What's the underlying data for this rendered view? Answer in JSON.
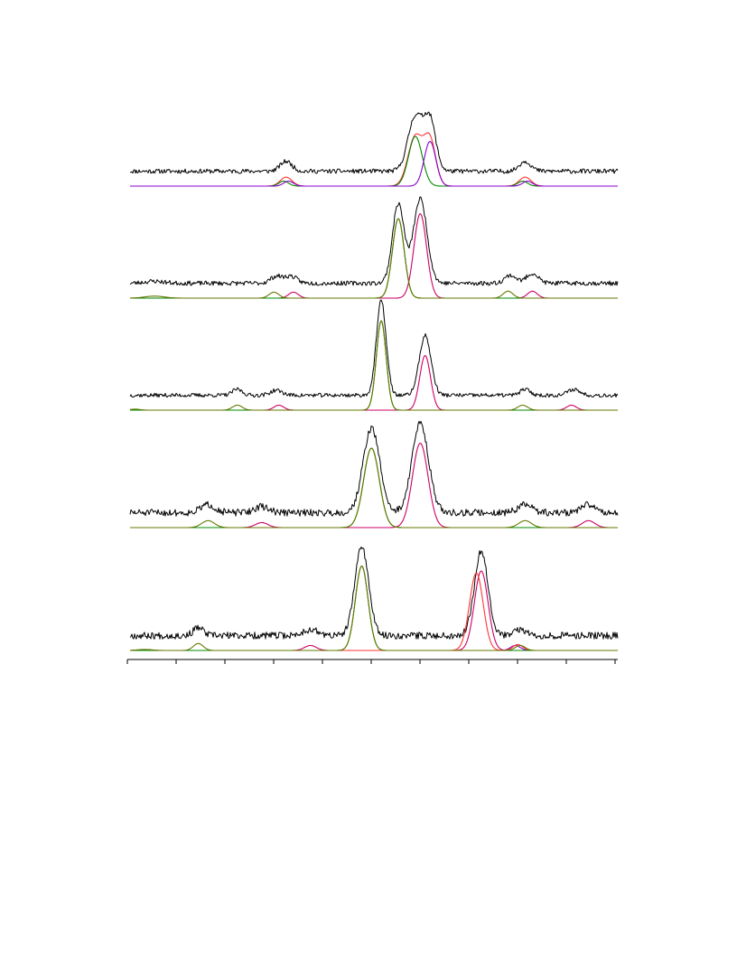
{
  "chart_data": {
    "type": "line",
    "title": "",
    "xlabel": "",
    "ylabel": "",
    "xlim": [
      0,
      10
    ],
    "x_ticks": [
      0,
      1,
      2,
      3,
      4,
      5,
      6,
      7,
      8,
      9,
      10
    ],
    "grid": false,
    "colors": {
      "experimental": "#000000",
      "total_fit": "#ff3333",
      "component_a": "#008800",
      "component_b": "#8800cc",
      "component_c": "#cc0066",
      "component_d": "#667700"
    },
    "panels": [
      {
        "noise": 0.045,
        "seed": 11,
        "series": [
          {
            "role": "experimental",
            "offset": 0.15,
            "peaks": [
              [
                3.2,
                0.1,
                0.12
              ],
              [
                5.85,
                0.55,
                0.15
              ],
              [
                6.15,
                0.5,
                0.12
              ],
              [
                8.1,
                0.1,
                0.12
              ]
            ]
          },
          {
            "role": "total_fit",
            "offset": 0.0,
            "peaks": [
              [
                3.2,
                0.09,
                0.12
              ],
              [
                5.85,
                0.5,
                0.15
              ],
              [
                6.15,
                0.45,
                0.12
              ],
              [
                8.1,
                0.09,
                0.12
              ]
            ]
          },
          {
            "role": "component_a",
            "offset": 0.0,
            "peaks": [
              [
                3.15,
                0.05,
                0.1
              ],
              [
                5.85,
                0.5,
                0.14
              ],
              [
                8.05,
                0.05,
                0.1
              ]
            ]
          },
          {
            "role": "component_b",
            "offset": 0.0,
            "peaks": [
              [
                3.25,
                0.05,
                0.1
              ],
              [
                6.15,
                0.45,
                0.12
              ],
              [
                8.15,
                0.05,
                0.1
              ]
            ]
          }
        ]
      },
      {
        "noise": 0.045,
        "seed": 23,
        "series": [
          {
            "role": "experimental",
            "offset": 0.15,
            "peaks": [
              [
                0.5,
                0.02,
                0.2
              ],
              [
                3.0,
                0.07,
                0.12
              ],
              [
                3.3,
                0.07,
                0.12
              ],
              [
                5.5,
                0.8,
                0.12
              ],
              [
                5.95,
                0.85,
                0.14
              ],
              [
                7.8,
                0.08,
                0.12
              ],
              [
                8.25,
                0.1,
                0.12
              ]
            ]
          },
          {
            "role": "component_c",
            "offset": 0.0,
            "peaks": [
              [
                3.35,
                0.06,
                0.1
              ],
              [
                5.95,
                0.85,
                0.13
              ],
              [
                8.25,
                0.07,
                0.1
              ]
            ]
          },
          {
            "role": "component_a",
            "offset": 0.0,
            "peaks": [
              [
                5.5,
                0.8,
                0.12
              ]
            ]
          },
          {
            "role": "component_d",
            "offset": 0.0,
            "peaks": [
              [
                0.5,
                0.02,
                0.2
              ],
              [
                2.95,
                0.06,
                0.1
              ],
              [
                5.5,
                0.8,
                0.12
              ],
              [
                7.75,
                0.07,
                0.1
              ]
            ]
          }
        ]
      },
      {
        "noise": 0.04,
        "seed": 37,
        "series": [
          {
            "role": "experimental",
            "offset": 0.15,
            "peaks": [
              [
                2.2,
                0.06,
                0.1
              ],
              [
                3.0,
                0.05,
                0.12
              ],
              [
                5.15,
                0.95,
                0.1
              ],
              [
                6.05,
                0.6,
                0.12
              ],
              [
                8.1,
                0.06,
                0.1
              ],
              [
                9.1,
                0.06,
                0.12
              ]
            ]
          },
          {
            "role": "component_c",
            "offset": 0.0,
            "peaks": [
              [
                3.05,
                0.05,
                0.1
              ],
              [
                6.05,
                0.55,
                0.11
              ],
              [
                9.05,
                0.05,
                0.1
              ]
            ]
          },
          {
            "role": "component_a",
            "offset": 0.0,
            "peaks": [
              [
                5.15,
                0.9,
                0.1
              ]
            ]
          },
          {
            "role": "component_d",
            "offset": 0.0,
            "peaks": [
              [
                0.1,
                0.01,
                0.1
              ],
              [
                2.2,
                0.05,
                0.1
              ],
              [
                5.15,
                0.9,
                0.1
              ],
              [
                8.05,
                0.05,
                0.1
              ]
            ]
          }
        ]
      },
      {
        "noise": 0.07,
        "seed": 51,
        "series": [
          {
            "role": "experimental",
            "offset": 0.15,
            "peaks": [
              [
                1.6,
                0.08,
                0.15
              ],
              [
                2.7,
                0.06,
                0.15
              ],
              [
                4.95,
                0.85,
                0.17
              ],
              [
                5.95,
                0.9,
                0.17
              ],
              [
                8.1,
                0.08,
                0.15
              ],
              [
                9.4,
                0.08,
                0.15
              ]
            ]
          },
          {
            "role": "component_c",
            "offset": 0.0,
            "peaks": [
              [
                2.7,
                0.05,
                0.13
              ],
              [
                5.95,
                0.85,
                0.16
              ],
              [
                9.4,
                0.07,
                0.13
              ]
            ]
          },
          {
            "role": "component_a",
            "offset": 0.0,
            "peaks": [
              [
                4.95,
                0.8,
                0.16
              ]
            ]
          },
          {
            "role": "component_d",
            "offset": 0.0,
            "peaks": [
              [
                1.6,
                0.07,
                0.13
              ],
              [
                4.95,
                0.8,
                0.16
              ],
              [
                8.1,
                0.07,
                0.13
              ]
            ]
          }
        ]
      },
      {
        "noise": 0.07,
        "seed": 67,
        "series": [
          {
            "role": "experimental",
            "offset": 0.15,
            "peaks": [
              [
                1.4,
                0.08,
                0.1
              ],
              [
                3.7,
                0.06,
                0.15
              ],
              [
                4.75,
                0.9,
                0.14
              ],
              [
                7.2,
                0.85,
                0.14
              ],
              [
                8.0,
                0.06,
                0.12
              ]
            ]
          },
          {
            "role": "component_c",
            "offset": 0.0,
            "peaks": [
              [
                3.7,
                0.05,
                0.12
              ],
              [
                7.2,
                0.8,
                0.14
              ]
            ]
          },
          {
            "role": "component_b",
            "offset": 0.0,
            "peaks": [
              [
                7.9,
                0.05,
                0.1
              ]
            ]
          },
          {
            "role": "total_fit",
            "offset": 0.0,
            "peaks": [
              [
                7.1,
                0.78,
                0.14
              ],
              [
                7.95,
                0.06,
                0.1
              ]
            ]
          },
          {
            "role": "component_a",
            "offset": 0.0,
            "peaks": [
              [
                4.75,
                0.85,
                0.13
              ]
            ]
          },
          {
            "role": "component_d",
            "offset": 0.0,
            "peaks": [
              [
                0.3,
                0.01,
                0.15
              ],
              [
                1.4,
                0.07,
                0.1
              ],
              [
                4.75,
                0.85,
                0.13
              ],
              [
                8.0,
                0.05,
                0.1
              ]
            ]
          }
        ]
      }
    ]
  }
}
